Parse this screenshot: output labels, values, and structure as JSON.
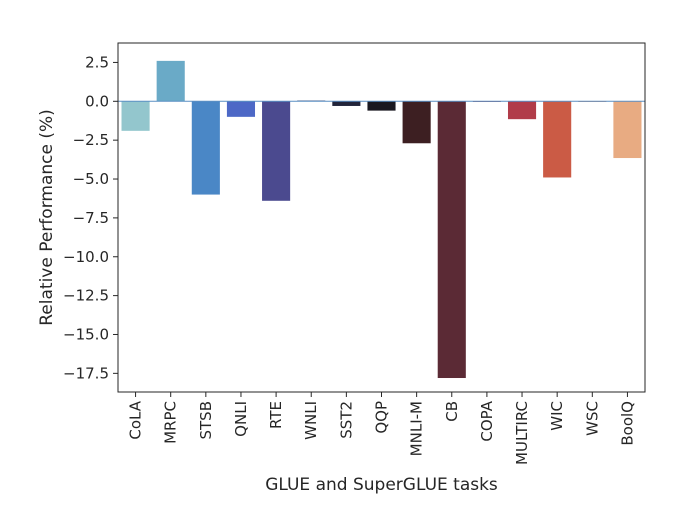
{
  "chart_data": {
    "type": "bar",
    "xlabel": "GLUE and SuperGLUE tasks",
    "ylabel": "Relative Performance (%)",
    "categories": [
      "CoLA",
      "MRPC",
      "STSB",
      "QNLI",
      "RTE",
      "WNLI",
      "SST2",
      "QQP",
      "MNLI-M",
      "CB",
      "COPA",
      "MULTIRC",
      "WIC",
      "WSC",
      "BoolQ"
    ],
    "values": [
      -1.9,
      2.6,
      -6.0,
      -1.0,
      -6.4,
      0.05,
      -0.3,
      -0.6,
      -2.7,
      -17.8,
      0.0,
      -1.15,
      -4.9,
      0.0,
      -3.65
    ],
    "colors": [
      "#93c6cd",
      "#6aaac7",
      "#4a87c6",
      "#4d68c6",
      "#4b4a8f",
      "#343d69",
      "#22243a",
      "#1a1820",
      "#3d1f22",
      "#5b2a35",
      "#8f3040",
      "#b13c49",
      "#cb5b45",
      "#dc8056",
      "#e8ab82"
    ],
    "ylim": [
      -18.7,
      3.75
    ],
    "yticks": [
      2.5,
      0.0,
      -2.5,
      -5.0,
      -7.5,
      -10.0,
      -12.5,
      -15.0,
      -17.5
    ],
    "ytick_labels": [
      "2.5",
      "0.0",
      "−2.5",
      "−5.0",
      "−7.5",
      "−10.0",
      "−12.5",
      "−15.0",
      "−17.5"
    ],
    "zero_line_color": "#5a8fc4",
    "grid": false
  }
}
